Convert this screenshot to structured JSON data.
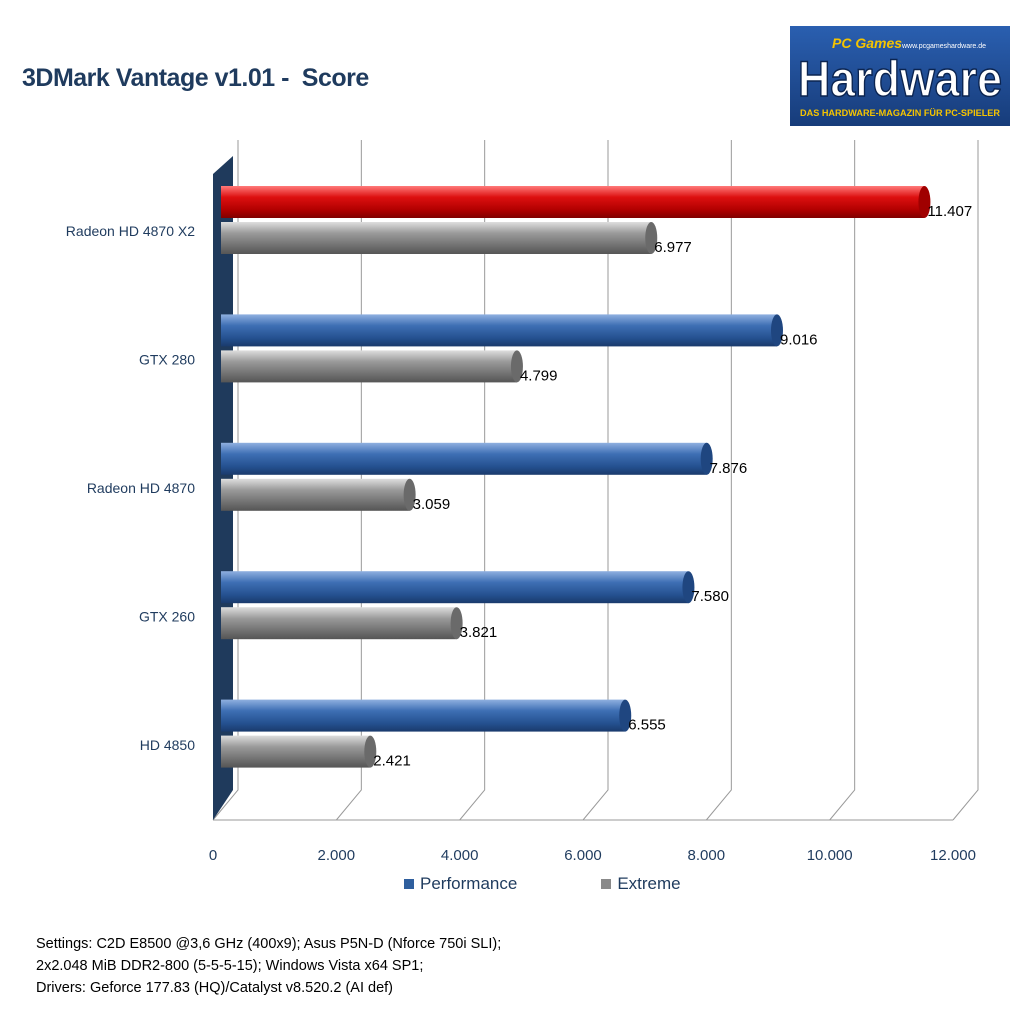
{
  "chart_data": {
    "type": "bar",
    "orientation": "horizontal",
    "title": "3DMark Vantage v1.01 -  Score",
    "categories": [
      "Radeon HD 4870 X2",
      "GTX 280",
      "Radeon HD 4870",
      "GTX 260",
      "HD 4850"
    ],
    "series": [
      {
        "name": "Performance",
        "values": [
          11407,
          9016,
          7876,
          7580,
          6555
        ],
        "labels": [
          "11.407",
          "9.016",
          "7.876",
          "7.580",
          "6.555"
        ]
      },
      {
        "name": "Extreme",
        "values": [
          6977,
          4799,
          3059,
          3821,
          2421
        ],
        "labels": [
          "6.977",
          "4.799",
          "3.059",
          "3.821",
          "2.421"
        ]
      }
    ],
    "highlight": {
      "category": "Radeon HD 4870 X2",
      "series": "Performance",
      "color": "#cc0000"
    },
    "xlim": [
      0,
      12000
    ],
    "xticks": [
      0,
      2000,
      4000,
      6000,
      8000,
      10000,
      12000
    ],
    "xtick_labels": [
      "0",
      "2.000",
      "4.000",
      "6.000",
      "8.000",
      "10.000",
      "12.000"
    ],
    "grid": true,
    "legend_position": "bottom",
    "colors": {
      "Performance": "#2f5f9e",
      "Extreme": "#8a8a8a",
      "highlight": "#cc0000"
    }
  },
  "logo": {
    "top_text": "PC Games",
    "main_text": "Hardware",
    "url": "www.pcgameshardware.de",
    "tagline": "DAS HARDWARE-MAGAZIN FÜR PC-SPIELER"
  },
  "notes": [
    "Settings: C2D E8500 @3,6 GHz (400x9); Asus P5N-D (Nforce 750i SLI);",
    "2x2.048 MiB DDR2-800 (5-5-5-15);  Windows Vista x64 SP1;",
    "Drivers: Geforce 177.83 (HQ)/Catalyst v8.520.2 (AI def)"
  ]
}
